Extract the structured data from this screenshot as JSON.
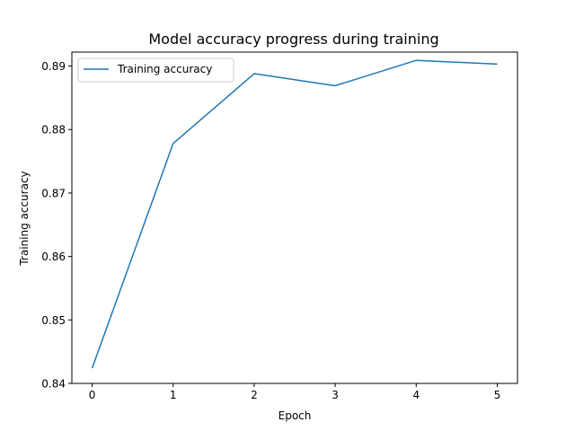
{
  "chart_data": {
    "type": "line",
    "title": "Model accuracy progress during training",
    "xlabel": "Epoch",
    "ylabel": "Training accuracy",
    "x": [
      0,
      1,
      2,
      3,
      4,
      5
    ],
    "xticks": [
      "0",
      "1",
      "2",
      "3",
      "4",
      "5"
    ],
    "yticks": [
      "0.84",
      "0.85",
      "0.86",
      "0.87",
      "0.88",
      "0.89"
    ],
    "ytick_values": [
      0.84,
      0.85,
      0.86,
      0.87,
      0.88,
      0.89
    ],
    "xlim": [
      -0.25,
      5.25
    ],
    "ylim": [
      0.84,
      0.8922
    ],
    "grid": false,
    "legend_position": "upper-left",
    "series": [
      {
        "name": "Training accuracy",
        "color": "#1f77b4",
        "values": [
          0.8424,
          0.8778,
          0.8888,
          0.8869,
          0.8909,
          0.8903
        ]
      }
    ]
  }
}
